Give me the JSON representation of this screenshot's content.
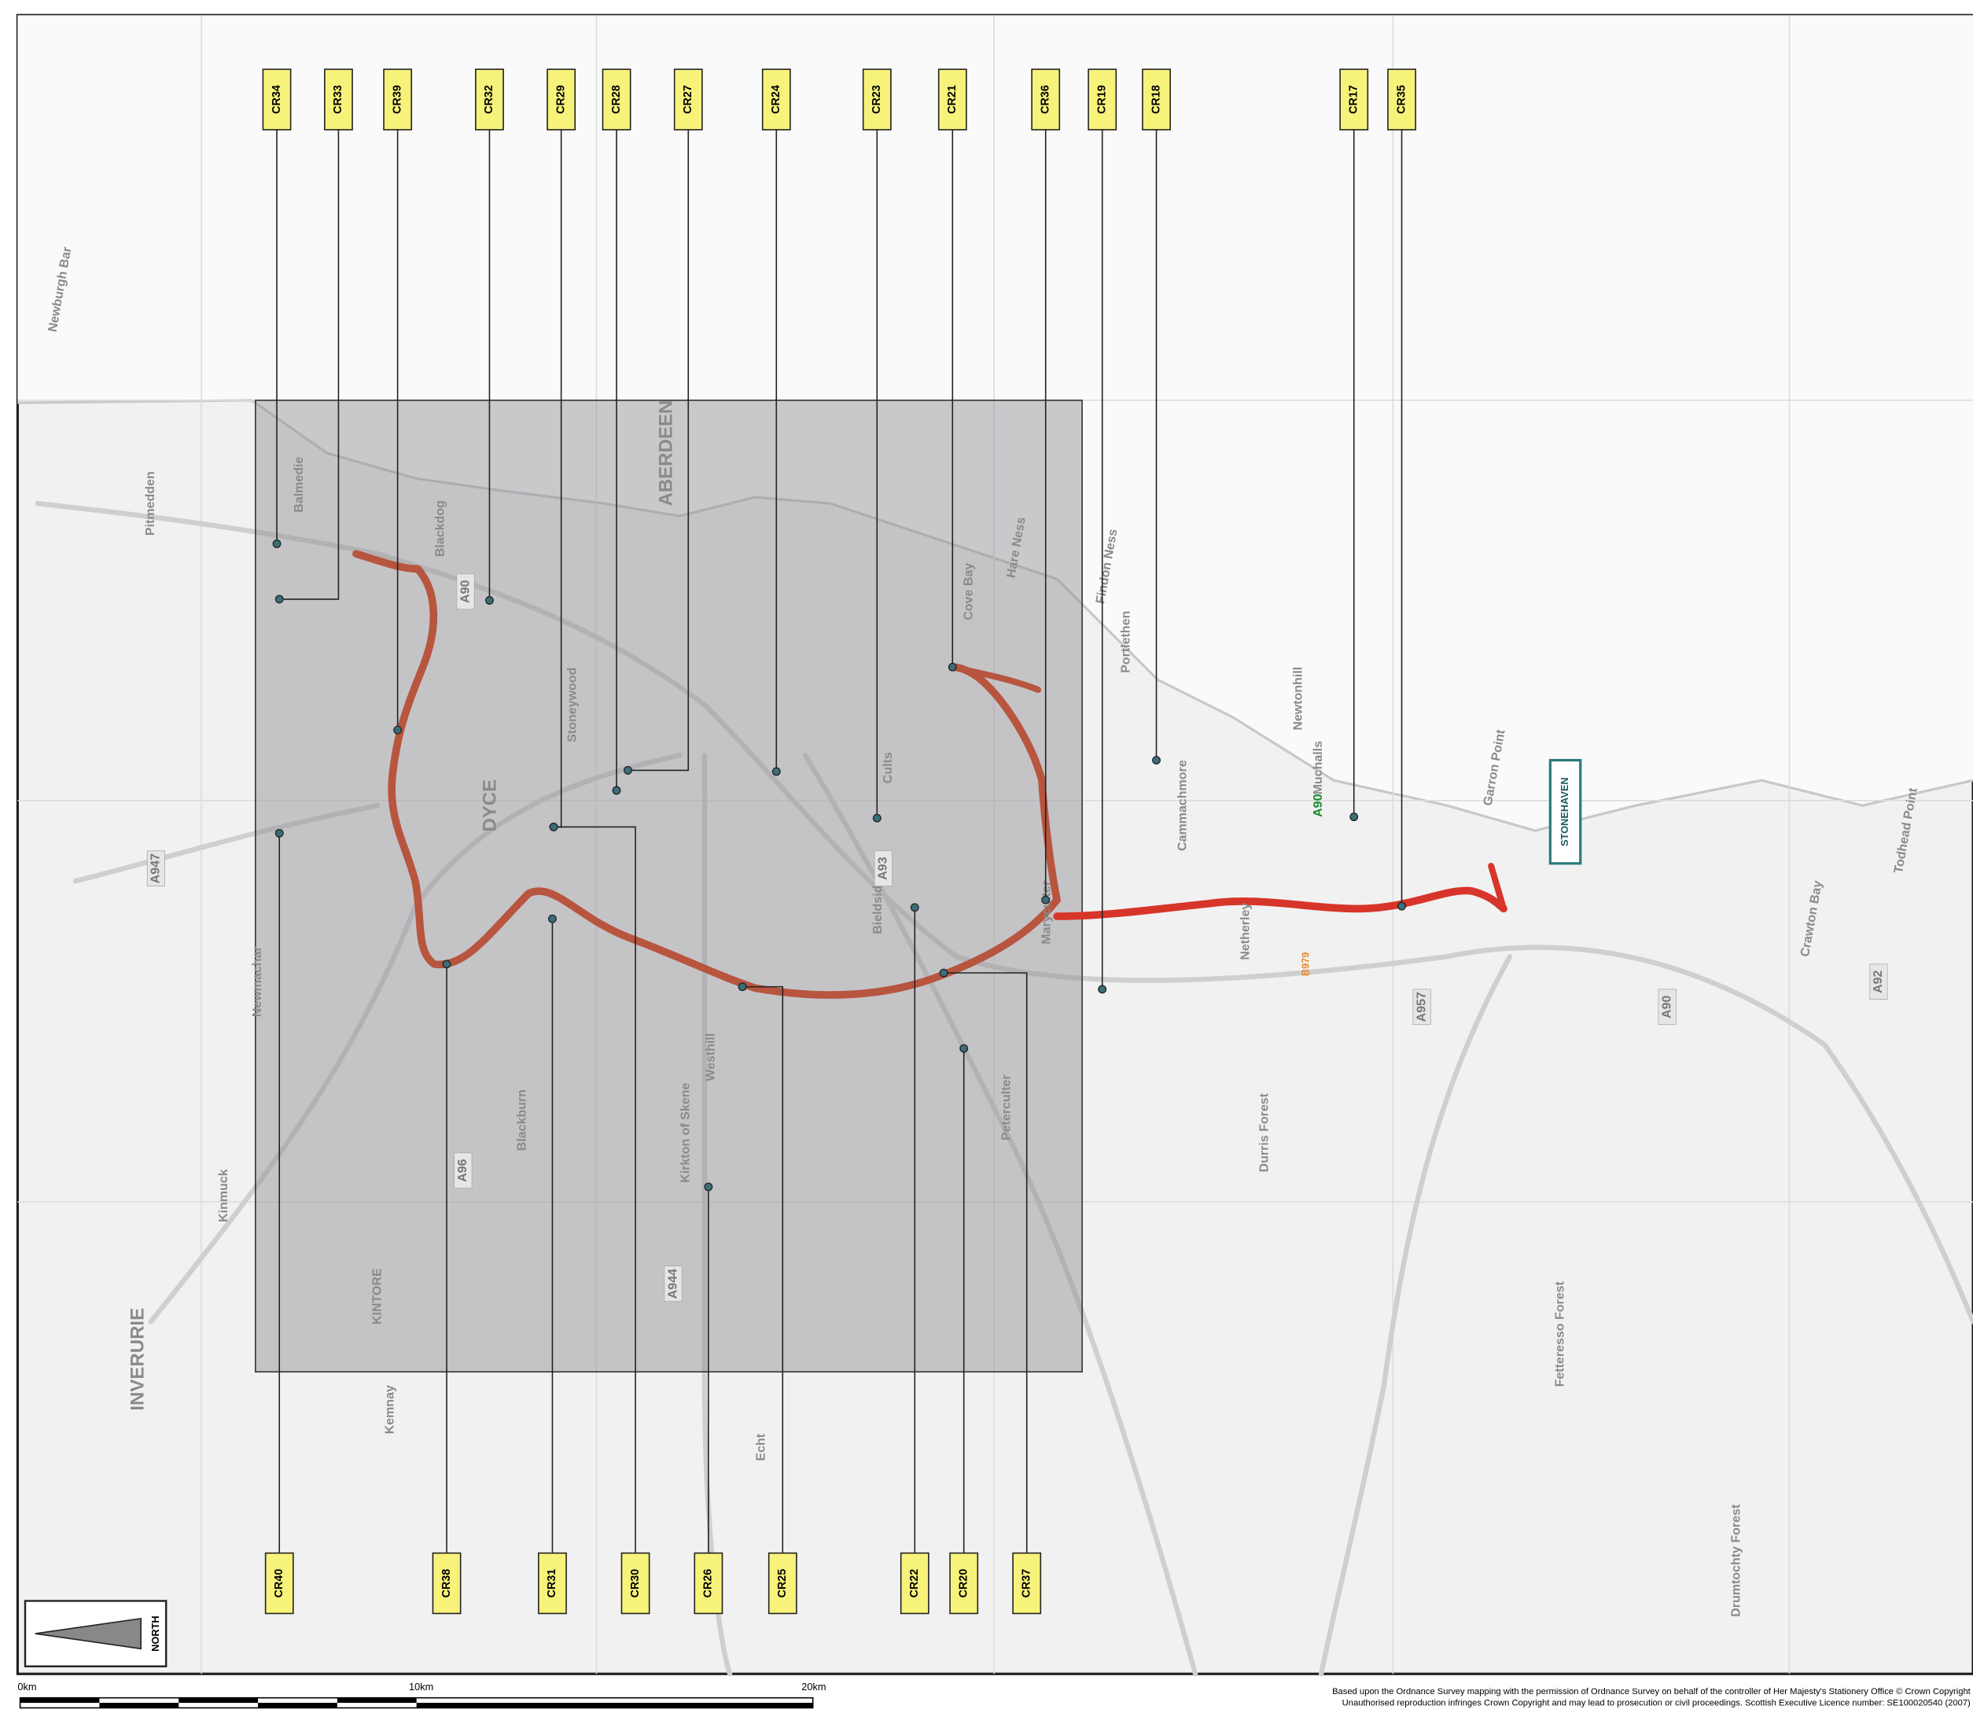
{
  "map": {
    "callouts_top": [
      "CR34",
      "CR33",
      "CR39",
      "CR32",
      "CR29",
      "CR28",
      "CR27",
      "CR24",
      "CR23",
      "CR21",
      "CR36",
      "CR19",
      "CR18",
      "CR17",
      "CR35"
    ],
    "callouts_bottom": [
      "CR40",
      "CR38",
      "CR31",
      "CR30",
      "CR26",
      "CR25",
      "CR22",
      "CR20",
      "CR37"
    ],
    "town_label": "STONEHAVEN",
    "road_labels": [
      "A90",
      "B979"
    ],
    "grey_road_labels": [
      "A90",
      "A96",
      "A944",
      "A93",
      "A957",
      "A92",
      "A947",
      "A90"
    ],
    "place_names": [
      "Newburgh Bar",
      "ABERDEEN",
      "DYCE",
      "KINTORE",
      "INVERURIE",
      "Portlethen",
      "Peterculter",
      "Cults",
      "Westhill",
      "Stoneywood",
      "Kirkton of Skene",
      "Newmachar",
      "Durris Forest",
      "Fetteresso Forest",
      "Drumtochty Forest",
      "Kemnay",
      "Echt",
      "Garron Point",
      "Todhead Point",
      "Crawton Bay",
      "Blackdog",
      "Balmedie",
      "Cove Bay",
      "Hare Ness",
      "Findon Ness",
      "Muchalls",
      "Newtonhill",
      "Cammachmore",
      "Netherley",
      "Maryculter",
      "Bieldside",
      "Kinmuck",
      "Blackburn",
      "Pitmedden"
    ],
    "north": "NORTH",
    "scale_labels": [
      "0km",
      "10km",
      "20km"
    ],
    "copyright": [
      "Based upon the Ordnance Survey mapping with the permission of Ordnance Survey on behalf of the controller of Her Majesty's Stationery Office © Crown Copyright",
      "Unauthorised reproduction infringes Crown Copyright and may lead to prosecution or civil proceedings. Scottish Executive Licence number: SE100020540 (2007)"
    ]
  }
}
